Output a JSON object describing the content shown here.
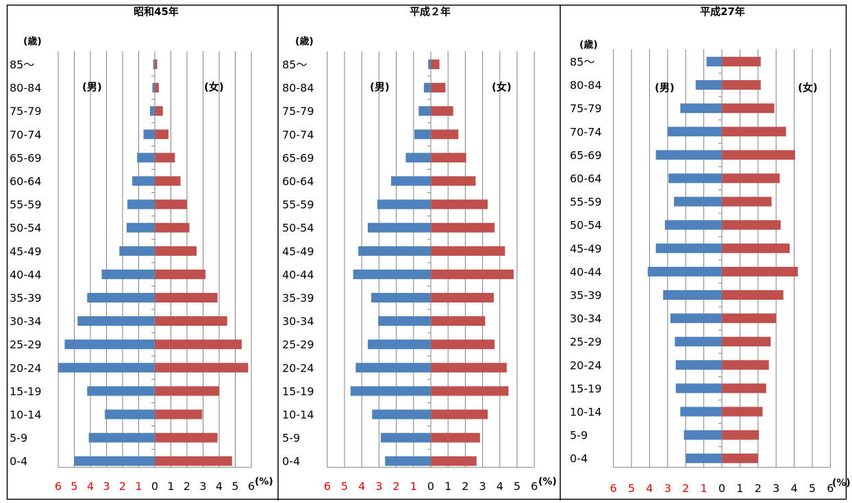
{
  "colors": {
    "male": "#4f81bd",
    "female": "#c0504d",
    "neg_tick": "#ff0000",
    "grid": "#7f7f7f",
    "frame": "#000000"
  },
  "chart_data": [
    {
      "type": "bar",
      "title": "昭和45年",
      "ylabel": "(歳)",
      "xlabel": "(%)",
      "male_label": "(男)",
      "female_label": "(女)",
      "categories": [
        "85～",
        "80-84",
        "75-79",
        "70-74",
        "65-69",
        "60-64",
        "55-59",
        "50-54",
        "45-49",
        "40-44",
        "35-39",
        "30-34",
        "25-29",
        "20-24",
        "15-19",
        "10-14",
        "5-9",
        "0-4"
      ],
      "series": [
        {
          "name": "男",
          "values": [
            0.1,
            0.15,
            0.3,
            0.7,
            1.1,
            1.4,
            1.7,
            1.75,
            2.2,
            3.3,
            4.2,
            4.8,
            5.6,
            6.0,
            4.2,
            3.1,
            4.1,
            5.0
          ]
        },
        {
          "name": "女",
          "values": [
            0.15,
            0.25,
            0.5,
            0.85,
            1.25,
            1.6,
            2.0,
            2.15,
            2.6,
            3.15,
            3.9,
            4.5,
            5.4,
            5.8,
            4.0,
            2.95,
            3.9,
            4.8
          ]
        }
      ],
      "xlim": [
        -6,
        6
      ],
      "x_tick_labels": [
        "6",
        "5",
        "4",
        "3",
        "2",
        "1",
        "0",
        "1",
        "2",
        "3",
        "4",
        "5",
        "6"
      ]
    },
    {
      "type": "bar",
      "title": "平成２年",
      "ylabel": "(歳)",
      "xlabel": "(%)",
      "male_label": "(男)",
      "female_label": "(女)",
      "categories": [
        "85～",
        "80-84",
        "75-79",
        "70-74",
        "65-69",
        "60-64",
        "55-59",
        "50-54",
        "45-49",
        "40-44",
        "35-39",
        "30-34",
        "25-29",
        "20-24",
        "15-19",
        "10-14",
        "5-9",
        "0-4"
      ],
      "series": [
        {
          "name": "男",
          "values": [
            0.15,
            0.4,
            0.7,
            0.95,
            1.45,
            2.3,
            3.1,
            3.65,
            4.2,
            4.5,
            3.45,
            3.05,
            3.65,
            4.35,
            4.65,
            3.4,
            2.9,
            2.65
          ]
        },
        {
          "name": "女",
          "values": [
            0.5,
            0.85,
            1.3,
            1.6,
            2.05,
            2.6,
            3.3,
            3.7,
            4.3,
            4.8,
            3.65,
            3.15,
            3.7,
            4.4,
            4.5,
            3.3,
            2.85,
            2.65
          ]
        }
      ],
      "xlim": [
        -6,
        6
      ],
      "x_tick_labels": [
        "6",
        "5",
        "4",
        "3",
        "2",
        "1",
        "0",
        "1",
        "2",
        "3",
        "4",
        "5",
        "6"
      ]
    },
    {
      "type": "bar",
      "title": "平成27年",
      "ylabel": "(歳)",
      "xlabel": "(%)",
      "male_label": "(男)",
      "female_label": "(女)",
      "categories": [
        "85～",
        "80-84",
        "75-79",
        "70-74",
        "65-69",
        "60-64",
        "55-59",
        "50-54",
        "45-49",
        "40-44",
        "35-39",
        "30-34",
        "25-29",
        "20-24",
        "15-19",
        "10-14",
        "5-9",
        "0-4"
      ],
      "series": [
        {
          "name": "男",
          "values": [
            0.85,
            1.45,
            2.3,
            3.0,
            3.65,
            2.95,
            2.65,
            3.15,
            3.65,
            4.1,
            3.25,
            2.85,
            2.6,
            2.55,
            2.55,
            2.3,
            2.1,
            2.0
          ]
        },
        {
          "name": "女",
          "values": [
            2.15,
            2.15,
            2.9,
            3.55,
            4.05,
            3.2,
            2.75,
            3.25,
            3.75,
            4.2,
            3.4,
            3.0,
            2.7,
            2.6,
            2.45,
            2.25,
            2.05,
            2.0
          ]
        }
      ],
      "xlim": [
        -6,
        6
      ],
      "x_tick_labels": [
        "6",
        "5",
        "4",
        "3",
        "2",
        "1",
        "0",
        "1",
        "2",
        "3",
        "4",
        "5",
        "6"
      ]
    }
  ]
}
